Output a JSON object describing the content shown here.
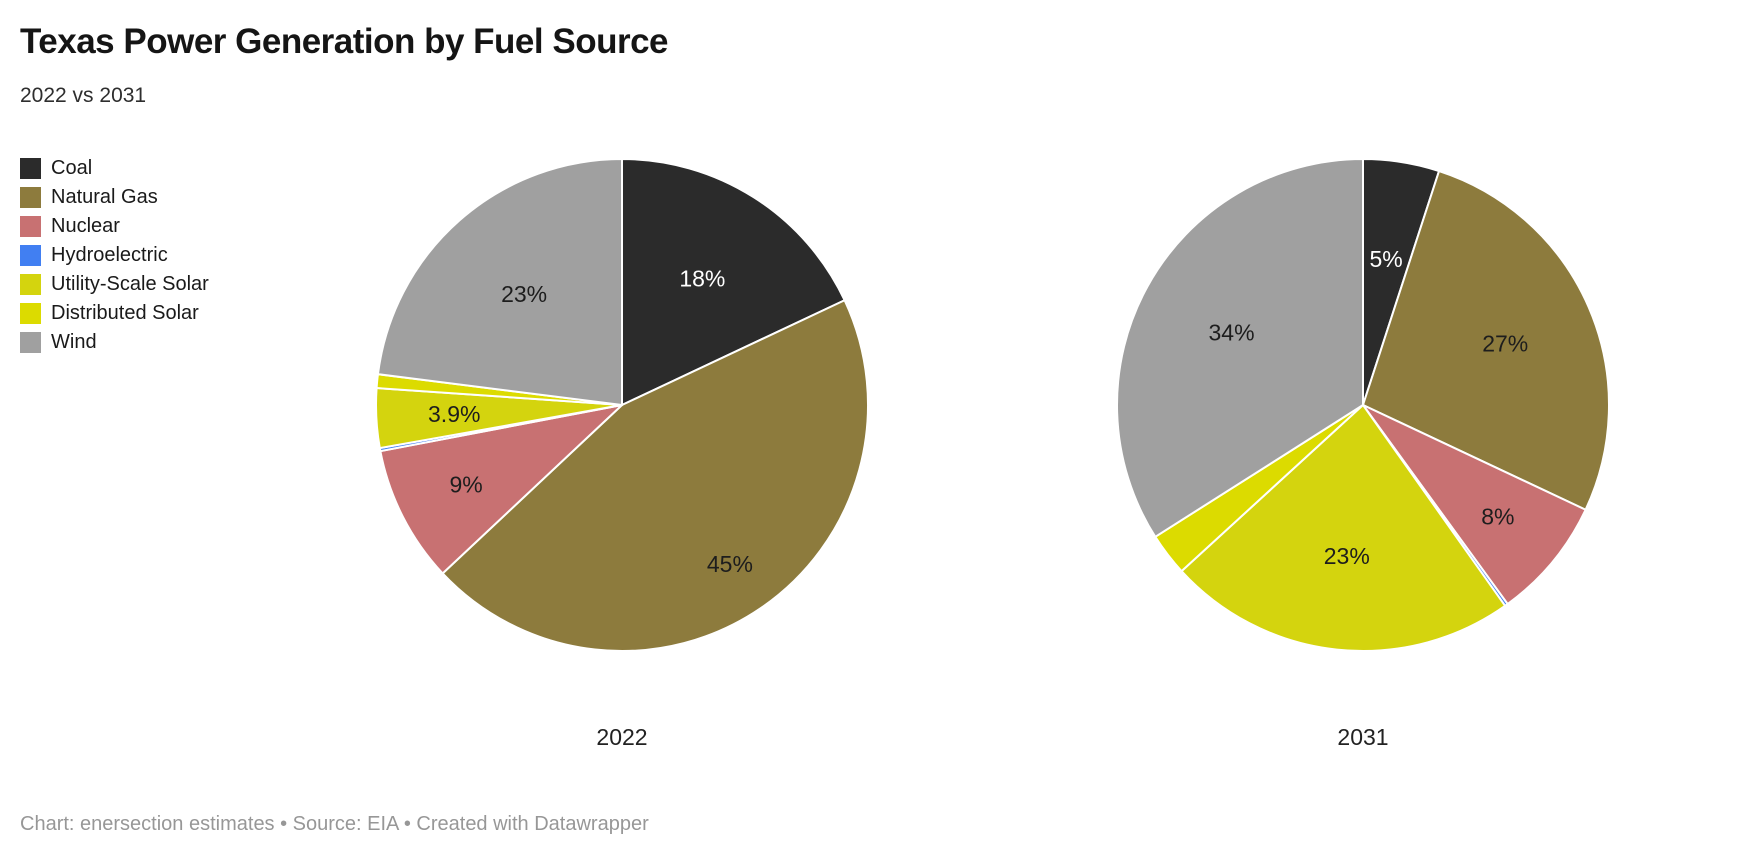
{
  "header": {
    "title": "Texas Power Generation by Fuel Source",
    "subtitle": "2022 vs 2031"
  },
  "footer": {
    "text": "Chart: enersection estimates • Source: EIA • Created with Datawrapper"
  },
  "colors": {
    "coal": "#2b2b2b",
    "natural_gas": "#8d7b3d",
    "nuclear": "#c87172",
    "hydroelectric": "#417ff2",
    "utility_scale_solar": "#d4d40e",
    "distributed_solar": "#dcdb00",
    "wind": "#a0a0a0",
    "slice_separator": "#ffffff",
    "label_dark": "#1d1d1d",
    "label_light": "#ffffff"
  },
  "legend": {
    "items": [
      {
        "label": "Coal",
        "color": "#2b2b2b"
      },
      {
        "label": "Natural Gas",
        "color": "#8d7b3d"
      },
      {
        "label": "Nuclear",
        "color": "#c87172"
      },
      {
        "label": "Hydroelectric",
        "color": "#417ff2"
      },
      {
        "label": "Utility-Scale Solar",
        "color": "#d4d40e"
      },
      {
        "label": "Distributed Solar",
        "color": "#dcdb00"
      },
      {
        "label": "Wind",
        "color": "#a0a0a0"
      }
    ]
  },
  "chart_data": [
    {
      "type": "pie",
      "title": "2022",
      "start_angle_deg": 0,
      "direction": "clockwise",
      "categories": [
        "Coal",
        "Natural Gas",
        "Nuclear",
        "Hydroelectric",
        "Utility-Scale Solar",
        "Distributed Solar",
        "Wind"
      ],
      "values": [
        18,
        45,
        9,
        0.2,
        3.9,
        0.9,
        23
      ],
      "labels": [
        "18%",
        "45%",
        "9%",
        "",
        "3.9%",
        "",
        "23%"
      ],
      "colors": [
        "#2b2b2b",
        "#8d7b3d",
        "#c87172",
        "#417ff2",
        "#d4d40e",
        "#dcdb00",
        "#a0a0a0"
      ],
      "label_colors": [
        "#ffffff",
        "#1d1d1d",
        "#1d1d1d",
        "",
        "#1d1d1d",
        "",
        "#1d1d1d"
      ],
      "label_radius": [
        150,
        192,
        175,
        0,
        168,
        0,
        148
      ]
    },
    {
      "type": "pie",
      "title": "2031",
      "start_angle_deg": 0,
      "direction": "clockwise",
      "categories": [
        "Coal",
        "Natural Gas",
        "Nuclear",
        "Hydroelectric",
        "Utility-Scale Solar",
        "Distributed Solar",
        "Wind"
      ],
      "values": [
        5,
        27,
        8,
        0.2,
        23,
        2.8,
        34
      ],
      "labels": [
        "5%",
        "27%",
        "8%",
        "",
        "23%",
        "",
        "34%"
      ],
      "colors": [
        "#2b2b2b",
        "#8d7b3d",
        "#c87172",
        "#417ff2",
        "#d4d40e",
        "#dcdb00",
        "#a0a0a0"
      ],
      "label_colors": [
        "#ffffff",
        "#1d1d1d",
        "#1d1d1d",
        "",
        "#1d1d1d",
        "",
        "#1d1d1d"
      ],
      "label_radius": [
        148,
        155,
        175,
        0,
        152,
        0,
        150
      ]
    }
  ]
}
